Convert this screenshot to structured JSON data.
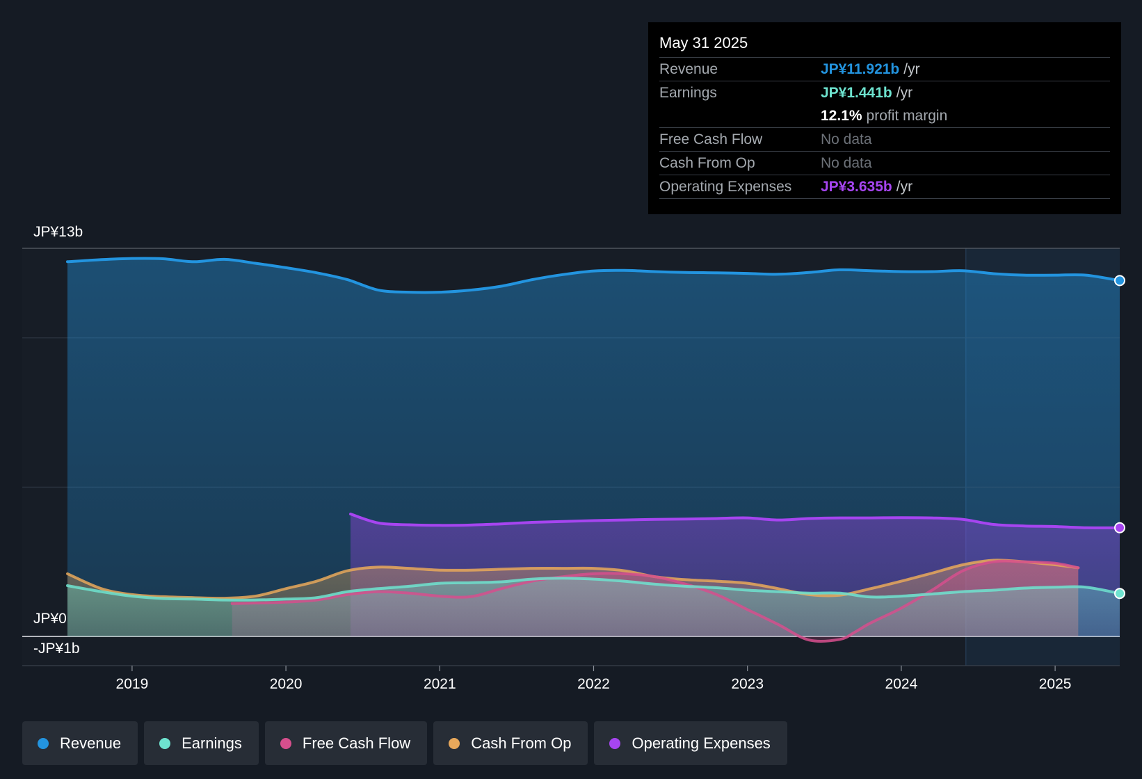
{
  "tooltip": {
    "date": "May 31 2025",
    "rows": [
      {
        "label": "Revenue",
        "value": "JP¥11.921b",
        "unit": "/yr",
        "color": "#2394df"
      },
      {
        "label": "Earnings",
        "value": "JP¥1.441b",
        "unit": "/yr",
        "color": "#6ee3cf"
      },
      {
        "margin_value": "12.1%",
        "margin_label": "profit margin"
      },
      {
        "label": "Free Cash Flow",
        "value": "No data"
      },
      {
        "label": "Cash From Op",
        "value": "No data"
      },
      {
        "label": "Operating Expenses",
        "value": "JP¥3.635b",
        "unit": "/yr",
        "color": "#a645f0"
      }
    ]
  },
  "chart_data": {
    "type": "area",
    "title": "",
    "xlabel": "",
    "ylabel": "",
    "y_labels": {
      "top": "JP¥13b",
      "zero": "JP¥0",
      "bottom": "-JP¥1b"
    },
    "ylim": [
      -1,
      13
    ],
    "xlim": [
      2018.58,
      2025.42
    ],
    "x_ticks": [
      2019,
      2020,
      2021,
      2022,
      2023,
      2024,
      2025
    ],
    "gridlines": [
      13,
      10,
      5,
      0
    ],
    "grid": true,
    "forecast_start": 2024.42,
    "legend_position": "bottom-left",
    "series": [
      {
        "name": "Revenue",
        "color": "#2394df",
        "x": [
          2018.58,
          2018.8,
          2019.0,
          2019.2,
          2019.4,
          2019.6,
          2019.8,
          2020.0,
          2020.2,
          2020.4,
          2020.6,
          2020.8,
          2021.0,
          2021.2,
          2021.4,
          2021.6,
          2021.8,
          2022.0,
          2022.2,
          2022.4,
          2022.6,
          2022.8,
          2023.0,
          2023.2,
          2023.4,
          2023.6,
          2023.8,
          2024.0,
          2024.2,
          2024.4,
          2024.6,
          2024.8,
          2025.0,
          2025.2,
          2025.42
        ],
        "values": [
          12.55,
          12.62,
          12.66,
          12.65,
          12.55,
          12.63,
          12.5,
          12.35,
          12.18,
          11.95,
          11.6,
          11.53,
          11.53,
          11.6,
          11.73,
          11.95,
          12.12,
          12.24,
          12.26,
          12.22,
          12.19,
          12.18,
          12.16,
          12.13,
          12.19,
          12.28,
          12.25,
          12.22,
          12.22,
          12.25,
          12.15,
          12.1,
          12.1,
          12.1,
          11.92
        ]
      },
      {
        "name": "Earnings",
        "color": "#6ee3cf",
        "x": [
          2018.58,
          2018.8,
          2019.0,
          2019.2,
          2019.4,
          2019.6,
          2019.8,
          2020.0,
          2020.2,
          2020.4,
          2020.6,
          2020.8,
          2021.0,
          2021.2,
          2021.4,
          2021.6,
          2021.8,
          2022.0,
          2022.2,
          2022.4,
          2022.6,
          2022.8,
          2023.0,
          2023.2,
          2023.4,
          2023.6,
          2023.8,
          2024.0,
          2024.2,
          2024.4,
          2024.6,
          2024.8,
          2025.0,
          2025.2,
          2025.42
        ],
        "values": [
          1.7,
          1.5,
          1.35,
          1.27,
          1.25,
          1.22,
          1.22,
          1.25,
          1.3,
          1.5,
          1.6,
          1.68,
          1.78,
          1.8,
          1.83,
          1.92,
          1.95,
          1.92,
          1.85,
          1.75,
          1.68,
          1.63,
          1.55,
          1.5,
          1.45,
          1.45,
          1.32,
          1.35,
          1.42,
          1.5,
          1.55,
          1.62,
          1.65,
          1.65,
          1.44
        ]
      },
      {
        "name": "Free Cash Flow",
        "color": "#d64f8d",
        "x": [
          2019.65,
          2019.8,
          2020.0,
          2020.2,
          2020.4,
          2020.6,
          2020.8,
          2021.0,
          2021.2,
          2021.4,
          2021.6,
          2021.8,
          2022.0,
          2022.2,
          2022.4,
          2022.6,
          2022.8,
          2023.0,
          2023.2,
          2023.4,
          2023.6,
          2023.7,
          2023.8,
          2024.0,
          2024.2,
          2024.4,
          2024.6,
          2024.8,
          2025.0,
          2025.15
        ],
        "values": [
          1.1,
          1.12,
          1.15,
          1.22,
          1.4,
          1.5,
          1.45,
          1.35,
          1.33,
          1.6,
          1.85,
          2.0,
          2.1,
          2.1,
          2.0,
          1.75,
          1.4,
          0.9,
          0.4,
          -0.12,
          -0.1,
          0.15,
          0.45,
          0.95,
          1.55,
          2.2,
          2.5,
          2.5,
          2.45,
          2.3
        ]
      },
      {
        "name": "Cash From Op",
        "color": "#e8a85b",
        "x": [
          2018.58,
          2018.8,
          2019.0,
          2019.2,
          2019.4,
          2019.6,
          2019.8,
          2020.0,
          2020.2,
          2020.4,
          2020.6,
          2020.8,
          2021.0,
          2021.2,
          2021.4,
          2021.6,
          2021.8,
          2022.0,
          2022.2,
          2022.4,
          2022.6,
          2022.8,
          2023.0,
          2023.2,
          2023.4,
          2023.6,
          2023.8,
          2024.0,
          2024.2,
          2024.4,
          2024.6,
          2024.8,
          2025.0,
          2025.15
        ],
        "values": [
          2.1,
          1.6,
          1.4,
          1.33,
          1.3,
          1.28,
          1.35,
          1.6,
          1.85,
          2.2,
          2.32,
          2.28,
          2.22,
          2.22,
          2.25,
          2.28,
          2.28,
          2.28,
          2.2,
          2.0,
          1.9,
          1.85,
          1.78,
          1.6,
          1.4,
          1.38,
          1.6,
          1.85,
          2.12,
          2.4,
          2.55,
          2.5,
          2.4,
          2.3
        ]
      },
      {
        "name": "Operating Expenses",
        "color": "#a645f0",
        "x": [
          2020.42,
          2020.6,
          2020.8,
          2021.0,
          2021.2,
          2021.4,
          2021.6,
          2021.8,
          2022.0,
          2022.2,
          2022.4,
          2022.6,
          2022.8,
          2023.0,
          2023.2,
          2023.4,
          2023.6,
          2023.8,
          2024.0,
          2024.2,
          2024.4,
          2024.6,
          2024.8,
          2025.0,
          2025.2,
          2025.42
        ],
        "values": [
          4.1,
          3.8,
          3.74,
          3.72,
          3.73,
          3.77,
          3.82,
          3.85,
          3.88,
          3.9,
          3.92,
          3.93,
          3.95,
          3.97,
          3.9,
          3.95,
          3.97,
          3.97,
          3.98,
          3.97,
          3.92,
          3.75,
          3.7,
          3.68,
          3.64,
          3.64
        ]
      }
    ]
  },
  "legend": [
    {
      "label": "Revenue",
      "color": "#2394df"
    },
    {
      "label": "Earnings",
      "color": "#6ee3cf"
    },
    {
      "label": "Free Cash Flow",
      "color": "#d64f8d"
    },
    {
      "label": "Cash From Op",
      "color": "#e8a85b"
    },
    {
      "label": "Operating Expenses",
      "color": "#a645f0"
    }
  ]
}
